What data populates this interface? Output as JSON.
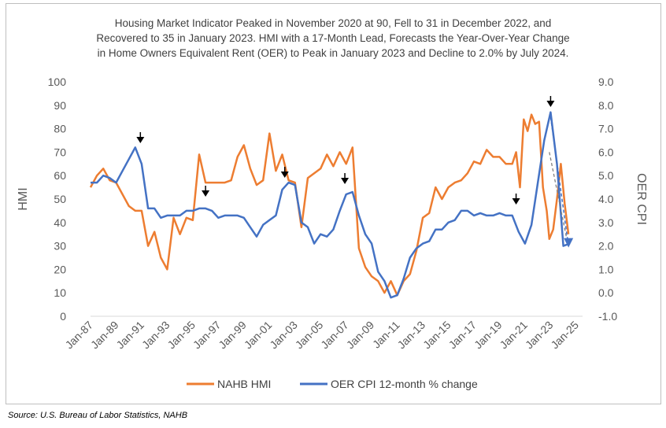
{
  "title_lines": [
    "Housing Market Indicator Peaked in November 2020 at 90, Fell to 31 in December 2022, and",
    "Recovered to 35 in January 2023. HMI with a 17-Month Lead, Forecasts the Year-Over-Year Change",
    "in Home Owners Equivalent Rent (OER) to Peak in January 2023 and Decline to 2.0% by July 2024."
  ],
  "source": "Source: U.S. Bureau of Labor Statistics, NAHB",
  "colors": {
    "hmi": "#ED7D31",
    "oer": "#4472C4",
    "marker": "#000000"
  },
  "chart_data": {
    "type": "line",
    "ylabel": "HMI",
    "y2label": "OER CPI",
    "ylim": [
      0,
      100
    ],
    "y2lim": [
      -1.0,
      9.0
    ],
    "xlim": [
      1987.0,
      2025.5
    ],
    "yticks": [
      "0",
      "10",
      "20",
      "30",
      "40",
      "50",
      "60",
      "70",
      "80",
      "90",
      "100"
    ],
    "y2ticks": [
      "-1.0",
      "0.0",
      "1.0",
      "2.0",
      "3.0",
      "4.0",
      "5.0",
      "6.0",
      "7.0",
      "8.0",
      "9.0"
    ],
    "xticks": [
      "Jan-87",
      "Jan-89",
      "Jan-91",
      "Jan-93",
      "Jan-95",
      "Jan-97",
      "Jan-99",
      "Jan-01",
      "Jan-03",
      "Jan-05",
      "Jan-07",
      "Jan-09",
      "Jan-11",
      "Jan-13",
      "Jan-15",
      "Jan-17",
      "Jan-19",
      "Jan-21",
      "Jan-23",
      "Jan-25"
    ],
    "legend_position": "bottom",
    "series": [
      {
        "name": "NAHB HMI",
        "axis": "left",
        "x": [
          1987.0,
          1987.5,
          1988.0,
          1988.5,
          1989.0,
          1989.5,
          1990.0,
          1990.5,
          1991.0,
          1991.5,
          1992.0,
          1992.5,
          1993.0,
          1993.5,
          1994.0,
          1994.5,
          1995.0,
          1995.5,
          1996.0,
          1996.5,
          1997.0,
          1997.5,
          1998.0,
          1998.5,
          1999.0,
          1999.5,
          2000.0,
          2000.5,
          2001.0,
          2001.5,
          2002.0,
          2002.5,
          2003.0,
          2003.5,
          2004.0,
          2004.5,
          2005.0,
          2005.5,
          2006.0,
          2006.5,
          2007.0,
          2007.5,
          2008.0,
          2008.5,
          2009.0,
          2009.5,
          2010.0,
          2010.5,
          2011.0,
          2011.5,
          2012.0,
          2012.5,
          2013.0,
          2013.5,
          2014.0,
          2014.5,
          2015.0,
          2015.5,
          2016.0,
          2016.5,
          2017.0,
          2017.5,
          2018.0,
          2018.5,
          2019.0,
          2019.5,
          2020.0,
          2020.3,
          2020.6,
          2020.9,
          2021.2,
          2021.5,
          2021.8,
          2022.1,
          2022.4,
          2022.7,
          2022.9,
          2023.2,
          2023.5,
          2023.8,
          2024.1,
          2024.4
        ],
        "values": [
          55,
          60,
          63,
          58,
          57,
          52,
          47,
          45,
          45,
          30,
          36,
          25,
          20,
          42,
          35,
          42,
          41,
          69,
          57,
          57,
          57,
          57,
          58,
          68,
          73,
          63,
          56,
          58,
          78,
          62,
          69,
          58,
          57,
          38,
          59,
          61,
          63,
          69,
          64,
          70,
          65,
          72,
          29,
          21,
          17,
          15,
          10,
          15,
          9,
          15,
          18,
          28,
          42,
          44,
          55,
          50,
          55,
          57,
          58,
          61,
          66,
          65,
          71,
          68,
          68,
          65,
          65,
          70,
          55,
          84,
          79,
          86,
          82,
          83,
          55,
          45,
          33,
          37,
          50,
          65,
          48,
          35
        ]
      },
      {
        "name": "OER CPI 12-month % change",
        "axis": "right",
        "x": [
          1987.0,
          1987.5,
          1988.0,
          1988.5,
          1989.0,
          1989.5,
          1990.0,
          1990.5,
          1991.0,
          1991.5,
          1992.0,
          1992.5,
          1993.0,
          1993.5,
          1994.0,
          1994.5,
          1995.0,
          1995.5,
          1996.0,
          1996.5,
          1997.0,
          1997.5,
          1998.0,
          1998.5,
          1999.0,
          1999.5,
          2000.0,
          2000.5,
          2001.0,
          2001.5,
          2002.0,
          2002.5,
          2003.0,
          2003.5,
          2004.0,
          2004.5,
          2005.0,
          2005.5,
          2006.0,
          2006.5,
          2007.0,
          2007.5,
          2008.0,
          2008.5,
          2009.0,
          2009.5,
          2010.0,
          2010.5,
          2011.0,
          2011.5,
          2012.0,
          2012.5,
          2013.0,
          2013.5,
          2014.0,
          2014.5,
          2015.0,
          2015.5,
          2016.0,
          2016.5,
          2017.0,
          2017.5,
          2018.0,
          2018.5,
          2019.0,
          2019.5,
          2020.0,
          2020.5,
          2021.0,
          2021.5,
          2022.0,
          2022.5,
          2023.0,
          2023.5,
          2024.0,
          2024.5
        ],
        "values": [
          4.7,
          4.7,
          5.0,
          4.9,
          4.7,
          5.2,
          5.7,
          6.2,
          5.5,
          3.6,
          3.6,
          3.2,
          3.3,
          3.3,
          3.3,
          3.5,
          3.5,
          3.6,
          3.6,
          3.5,
          3.2,
          3.3,
          3.3,
          3.3,
          3.2,
          2.8,
          2.4,
          2.9,
          3.1,
          3.3,
          4.4,
          4.7,
          4.6,
          3.0,
          2.8,
          2.1,
          2.5,
          2.4,
          2.7,
          3.5,
          4.2,
          4.3,
          3.3,
          2.5,
          2.1,
          0.9,
          0.5,
          -0.2,
          -0.1,
          0.6,
          1.5,
          1.9,
          2.1,
          2.2,
          2.7,
          2.7,
          3.0,
          3.1,
          3.5,
          3.5,
          3.3,
          3.4,
          3.3,
          3.3,
          3.4,
          3.3,
          3.3,
          2.6,
          2.1,
          2.9,
          4.7,
          6.5,
          7.7,
          5.5,
          2.0,
          2.1
        ]
      }
    ],
    "annotation_arrows_x": [
      1990.9,
      1996.0,
      2002.2,
      2006.9,
      2020.3,
      2023.0
    ],
    "projection": {
      "hmi_dashed": [
        [
          2022.9,
          70
        ],
        [
          2024.3,
          32
        ]
      ],
      "oer_dashed": [
        [
          2023.0,
          7.5
        ],
        [
          2024.4,
          2.0
        ]
      ]
    }
  }
}
